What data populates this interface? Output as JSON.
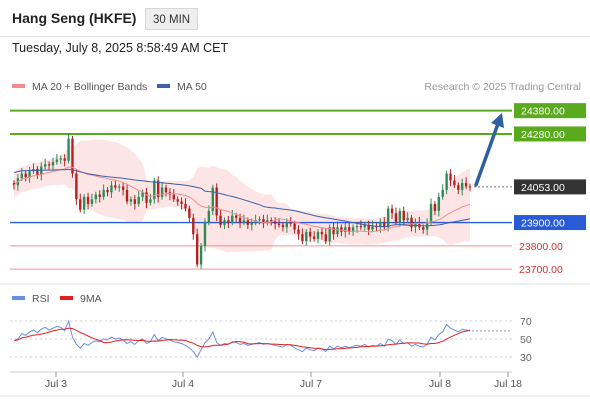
{
  "header": {
    "title": "Hang Seng (HKFE)",
    "timeframe": "30 MIN",
    "datetime": "Tuesday, July 8, 2025 8:58:49 AM CET"
  },
  "legend": {
    "main": [
      {
        "label": "MA 20 + Bollinger Bands",
        "color": "#f08c8c"
      },
      {
        "label": "MA 50",
        "color": "#3d5fa8"
      }
    ],
    "rsi": [
      {
        "label": "RSI",
        "color": "#6b8ee0"
      },
      {
        "label": "9MA",
        "color": "#e02020"
      }
    ],
    "credit": "Research © 2025 Trading Central"
  },
  "colors": {
    "resistance": "#5aaa1e",
    "pivot": "#2a5bd7",
    "support": "#f09090",
    "arrow": "#2e5f9e",
    "last_price": "#333333",
    "bull": "#2e8b57",
    "bear": "#b22222"
  },
  "chart_data": {
    "type": "candlestick",
    "price_range": [
      23645,
      24460
    ],
    "x_ticks": [
      "Jul 3",
      "Jul 4",
      "Jul 7",
      "Jul 8",
      "Jul 18"
    ],
    "levels": [
      {
        "value": 24380.0,
        "label": "24380.00",
        "kind": "resistance"
      },
      {
        "value": 24280.0,
        "label": "24280.00",
        "kind": "resistance"
      },
      {
        "value": 24053.0,
        "label": "24053.00",
        "kind": "last"
      },
      {
        "value": 23900.0,
        "label": "23900.00",
        "kind": "pivot"
      },
      {
        "value": 23800.0,
        "label": "23800.00",
        "kind": "support"
      },
      {
        "value": 23700.0,
        "label": "23700.00",
        "kind": "support"
      }
    ],
    "arrow": {
      "from": 24053,
      "to": 24370
    },
    "closes": [
      24060,
      24090,
      24110,
      24095,
      24120,
      24130,
      24105,
      24140,
      24150,
      24145,
      24160,
      24170,
      24175,
      24165,
      24260,
      24110,
      24000,
      23955,
      24010,
      23980,
      24000,
      24020,
      24010,
      24040,
      24030,
      24060,
      24050,
      24055,
      24040,
      23990,
      24000,
      23980,
      24010,
      24030,
      23985,
      24000,
      24080,
      24010,
      24050,
      24030,
      24020,
      24000,
      23990,
      23980,
      23960,
      23920,
      23850,
      23720,
      23800,
      23900,
      23950,
      24050,
      23930,
      23890,
      23910,
      23900,
      23930,
      23920,
      23900,
      23910,
      23890,
      23900,
      23910,
      23915,
      23900,
      23910,
      23905,
      23895,
      23890,
      23880,
      23900,
      23895,
      23870,
      23850,
      23820,
      23860,
      23840,
      23830,
      23860,
      23850,
      23820,
      23880,
      23850,
      23880,
      23860,
      23880,
      23860,
      23880,
      23885,
      23880,
      23890,
      23870,
      23885,
      23880,
      23900,
      23880,
      23960,
      23940,
      23900,
      23950,
      23910,
      23920,
      23880,
      23900,
      23880,
      23870,
      23900,
      23980,
      23950,
      24010,
      24040,
      24110,
      24080,
      24060,
      24040,
      24070,
      24055,
      24053
    ],
    "ma20_start": 24080,
    "ma20_end": 23960,
    "ma50_start": 24150,
    "ma50_end": 23915,
    "rsi": {
      "ticks": [
        "70",
        "50",
        "30"
      ],
      "range": [
        20,
        80
      ],
      "values": [
        48,
        50,
        56,
        54,
        58,
        60,
        57,
        61,
        63,
        60,
        62,
        64,
        63,
        59,
        70,
        52,
        44,
        40,
        45,
        43,
        46,
        48,
        47,
        50,
        49,
        52,
        50,
        51,
        49,
        45,
        47,
        44,
        48,
        50,
        45,
        47,
        55,
        48,
        52,
        50,
        49,
        47,
        46,
        45,
        43,
        40,
        36,
        30,
        38,
        46,
        50,
        58,
        46,
        43,
        45,
        44,
        47,
        46,
        44,
        45,
        43,
        44,
        45,
        46,
        44,
        45,
        44,
        43,
        42,
        41,
        44,
        43,
        40,
        38,
        36,
        40,
        38,
        37,
        40,
        39,
        36,
        42,
        39,
        42,
        40,
        42,
        40,
        42,
        43,
        42,
        44,
        41,
        43,
        42,
        45,
        42,
        50,
        48,
        44,
        49,
        45,
        46,
        42,
        44,
        42,
        41,
        44,
        52,
        49,
        55,
        58,
        66,
        62,
        60,
        58,
        61,
        60,
        59
      ]
    }
  }
}
